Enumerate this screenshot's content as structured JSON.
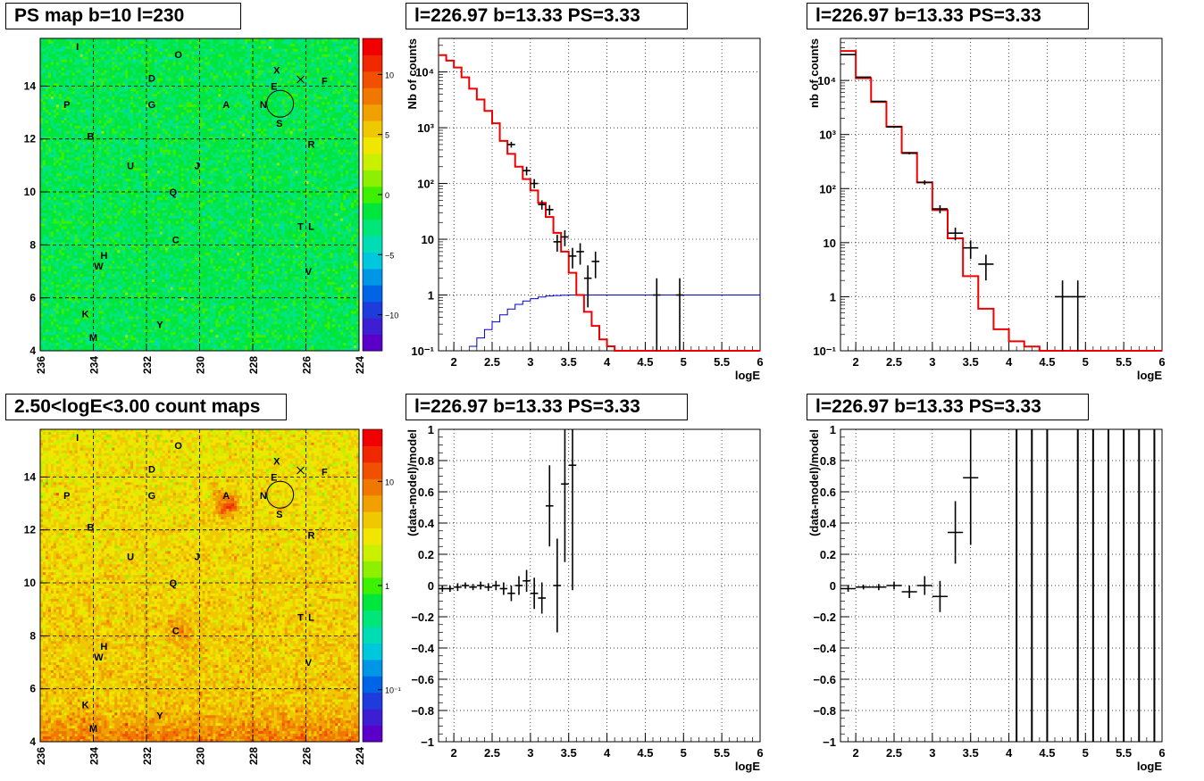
{
  "titles": {
    "ps_map": "PS map b=10 l=230",
    "count_map": "2.50<logE<3.00 count maps",
    "spec1": "l=226.97 b=13.33 PS=3.33",
    "spec2": "l=226.97 b=13.33 PS=3.33",
    "res1": "l=226.97 b=13.33 PS=3.33",
    "res2": "l=226.97 b=13.33 PS=3.33"
  },
  "maps": {
    "x_ticks": [
      "236",
      "234",
      "232",
      "230",
      "228",
      "226",
      "224"
    ],
    "y_ticks": [
      "4",
      "6",
      "8",
      "10",
      "12",
      "14"
    ],
    "x_range": [
      236,
      224
    ],
    "y_range": [
      4,
      15.8
    ],
    "sources": [
      {
        "label": "I",
        "l": 234.6,
        "b": 15.5
      },
      {
        "label": "O",
        "l": 230.8,
        "b": 15.2
      },
      {
        "label": "X",
        "l": 227.1,
        "b": 14.6
      },
      {
        "label": "D",
        "l": 231.8,
        "b": 14.3
      },
      {
        "label": "E",
        "l": 227.2,
        "b": 14.0
      },
      {
        "label": "F",
        "l": 225.3,
        "b": 14.2
      },
      {
        "label": "P",
        "l": 235.0,
        "b": 13.3
      },
      {
        "label": "G",
        "l": 231.8,
        "b": 13.3
      },
      {
        "label": "A",
        "l": 229.0,
        "b": 13.3
      },
      {
        "label": "N",
        "l": 227.6,
        "b": 13.3
      },
      {
        "label": "S",
        "l": 227.0,
        "b": 12.6
      },
      {
        "label": "B",
        "l": 234.1,
        "b": 12.1
      },
      {
        "label": "R",
        "l": 225.8,
        "b": 11.8
      },
      {
        "label": "U",
        "l": 232.6,
        "b": 11.0
      },
      {
        "label": "J",
        "l": 230.1,
        "b": 11.0
      },
      {
        "label": "Q",
        "l": 231.0,
        "b": 10.0
      },
      {
        "label": "T",
        "l": 226.2,
        "b": 8.7
      },
      {
        "label": "L",
        "l": 225.8,
        "b": 8.7
      },
      {
        "label": "C",
        "l": 230.9,
        "b": 8.2
      },
      {
        "label": "H",
        "l": 233.6,
        "b": 7.6
      },
      {
        "label": "W",
        "l": 233.8,
        "b": 7.2
      },
      {
        "label": "V",
        "l": 225.9,
        "b": 7.0
      },
      {
        "label": "K",
        "l": 234.3,
        "b": 5.4
      },
      {
        "label": "Y",
        "l": 231.5,
        "b": 5.0
      },
      {
        "label": "M",
        "l": 234.0,
        "b": 4.5
      }
    ],
    "target": {
      "l": 226.97,
      "b": 13.33
    },
    "ps_colorbar_ticks": [
      "10",
      "5",
      "0",
      "−5",
      "−10"
    ],
    "ps_colorbar_values": [
      10,
      5,
      0,
      -5,
      -10
    ],
    "ps_colorbar_range": [
      -13,
      13
    ],
    "count_colorbar_ticks": [
      "10",
      "1",
      "10⁻¹"
    ],
    "count_colorbar_values": [
      1,
      0,
      -1
    ],
    "count_colorbar_range": [
      -1.5,
      1.5
    ]
  },
  "chart_data": [
    {
      "type": "line",
      "name": "spec1",
      "xlabel": "logE",
      "ylabel": "Nb of counts",
      "xlim": [
        1.8,
        6.0
      ],
      "ylim": [
        0.1,
        40000
      ],
      "y_scale": "log",
      "x_ticks": [
        "2",
        "2.5",
        "3",
        "3.5",
        "4",
        "4.5",
        "5",
        "5.5",
        "6"
      ],
      "x_tick_values": [
        2,
        2.5,
        3,
        3.5,
        4,
        4.5,
        5,
        5.5,
        6
      ],
      "y_ticks": [
        "10⁻¹",
        "1",
        "10",
        "10²",
        "10³",
        "10⁴"
      ],
      "y_tick_values": [
        0.1,
        1,
        10,
        100,
        1000,
        10000
      ],
      "grid": true,
      "model_edges": [
        1.8,
        1.9,
        2.0,
        2.1,
        2.2,
        2.3,
        2.4,
        2.5,
        2.6,
        2.7,
        2.8,
        2.9,
        3.0,
        3.1,
        3.2,
        3.3,
        3.4,
        3.5,
        3.6,
        3.7,
        3.8,
        3.9,
        4.0,
        4.1,
        4.2,
        6.0
      ],
      "model_values": [
        20000,
        16000,
        12000,
        8000,
        5000,
        3200,
        2000,
        1200,
        580,
        340,
        200,
        120,
        75,
        45,
        25,
        13,
        6,
        2.5,
        1.0,
        0.5,
        0.28,
        0.16,
        0.12,
        0.1,
        0.09
      ],
      "blue_edges": [
        2.2,
        2.3,
        2.4,
        2.5,
        2.6,
        2.7,
        2.8,
        2.9,
        3.0,
        3.1,
        3.2,
        3.3,
        3.4,
        3.5,
        6.0
      ],
      "blue_values": [
        0.12,
        0.17,
        0.24,
        0.33,
        0.44,
        0.56,
        0.68,
        0.78,
        0.86,
        0.92,
        0.96,
        0.98,
        0.99,
        1.0,
        1.0
      ],
      "points": [
        {
          "x": 2.75,
          "y": 500,
          "dx": 0.05,
          "lo": 440,
          "hi": 560
        },
        {
          "x": 2.95,
          "y": 170,
          "dx": 0.05,
          "lo": 140,
          "hi": 200
        },
        {
          "x": 3.05,
          "y": 100,
          "dx": 0.05,
          "lo": 82,
          "hi": 120
        },
        {
          "x": 3.15,
          "y": 42,
          "dx": 0.05,
          "lo": 34,
          "hi": 50
        },
        {
          "x": 3.25,
          "y": 34,
          "dx": 0.05,
          "lo": 27,
          "hi": 41
        },
        {
          "x": 3.35,
          "y": 9,
          "dx": 0.05,
          "lo": 6,
          "hi": 12
        },
        {
          "x": 3.45,
          "y": 11,
          "dx": 0.05,
          "lo": 7.5,
          "hi": 14.5
        },
        {
          "x": 3.55,
          "y": 5,
          "dx": 0.05,
          "lo": 3,
          "hi": 7
        },
        {
          "x": 3.65,
          "y": 6,
          "dx": 0.05,
          "lo": 3.5,
          "hi": 8.5
        },
        {
          "x": 3.75,
          "y": 2,
          "dx": 0.05,
          "lo": 0.6,
          "hi": 3.4
        },
        {
          "x": 3.85,
          "y": 4,
          "dx": 0.05,
          "lo": 2,
          "hi": 6
        },
        {
          "x": 4.65,
          "y": 1,
          "dx": 0.05,
          "lo": 0.1,
          "hi": 2
        },
        {
          "x": 4.95,
          "y": 1,
          "dx": 0.05,
          "lo": 0.1,
          "hi": 2
        }
      ]
    },
    {
      "type": "line",
      "name": "spec2",
      "xlabel": "logE",
      "ylabel": "nb of counts",
      "xlim": [
        1.8,
        6.0
      ],
      "ylim": [
        0.1,
        60000
      ],
      "y_scale": "log",
      "x_ticks": [
        "2",
        "2.5",
        "3",
        "3.5",
        "4",
        "4.5",
        "5",
        "5.5",
        "6"
      ],
      "x_tick_values": [
        2,
        2.5,
        3,
        3.5,
        4,
        4.5,
        5,
        5.5,
        6
      ],
      "y_ticks": [
        "10⁻¹",
        "1",
        "10",
        "10²",
        "10³",
        "10⁴"
      ],
      "y_tick_values": [
        0.1,
        1,
        10,
        100,
        1000,
        10000
      ],
      "grid": true,
      "model_edges": [
        1.8,
        2.0,
        2.2,
        2.4,
        2.6,
        2.8,
        3.0,
        3.2,
        3.4,
        3.6,
        3.8,
        4.0,
        4.2,
        4.4,
        6.0
      ],
      "model_values": [
        35000,
        11000,
        4000,
        1400,
        460,
        130,
        40,
        12,
        2.4,
        0.6,
        0.25,
        0.15,
        0.12,
        0.1
      ],
      "points": [
        {
          "x": 1.9,
          "y": 30000,
          "dx": 0.1,
          "lo": 29500,
          "hi": 30500
        },
        {
          "x": 2.1,
          "y": 11500,
          "dx": 0.1,
          "lo": 11300,
          "hi": 11700
        },
        {
          "x": 2.3,
          "y": 4100,
          "dx": 0.1,
          "lo": 4000,
          "hi": 4200
        },
        {
          "x": 2.5,
          "y": 1380,
          "dx": 0.1,
          "lo": 1340,
          "hi": 1420
        },
        {
          "x": 2.7,
          "y": 450,
          "dx": 0.1,
          "lo": 430,
          "hi": 470
        },
        {
          "x": 2.9,
          "y": 130,
          "dx": 0.1,
          "lo": 118,
          "hi": 142
        },
        {
          "x": 3.1,
          "y": 42,
          "dx": 0.1,
          "lo": 35,
          "hi": 49
        },
        {
          "x": 3.3,
          "y": 15,
          "dx": 0.1,
          "lo": 11,
          "hi": 19
        },
        {
          "x": 3.5,
          "y": 8,
          "dx": 0.1,
          "lo": 5,
          "hi": 11
        },
        {
          "x": 3.7,
          "y": 4,
          "dx": 0.1,
          "lo": 2,
          "hi": 6
        },
        {
          "x": 4.7,
          "y": 1,
          "dx": 0.1,
          "lo": 0.1,
          "hi": 2
        },
        {
          "x": 4.9,
          "y": 1,
          "dx": 0.1,
          "lo": 0.1,
          "hi": 2
        }
      ]
    },
    {
      "type": "scatter",
      "name": "res1",
      "xlabel": "logE",
      "ylabel": "(data-model)/model",
      "xlim": [
        1.8,
        6.0
      ],
      "ylim": [
        -1,
        1
      ],
      "x_ticks": [
        "2",
        "2.5",
        "3",
        "3.5",
        "4",
        "4.5",
        "5",
        "5.5",
        "6"
      ],
      "x_tick_values": [
        2,
        2.5,
        3,
        3.5,
        4,
        4.5,
        5,
        5.5,
        6
      ],
      "y_ticks": [
        "1",
        "0.8",
        "0.6",
        "0.4",
        "0.2",
        "0",
        "−0.2",
        "−0.4",
        "−0.6",
        "−0.8",
        "−1"
      ],
      "y_tick_values": [
        1,
        0.8,
        0.6,
        0.4,
        0.2,
        0,
        -0.2,
        -0.4,
        -0.6,
        -0.8,
        -1
      ],
      "grid": true,
      "points": [
        {
          "x": 1.85,
          "y": -0.02,
          "dx": 0.05,
          "e": 0.02
        },
        {
          "x": 1.95,
          "y": -0.02,
          "dx": 0.05,
          "e": 0.02
        },
        {
          "x": 2.05,
          "y": -0.01,
          "dx": 0.05,
          "e": 0.025
        },
        {
          "x": 2.15,
          "y": 0.0,
          "dx": 0.05,
          "e": 0.02
        },
        {
          "x": 2.25,
          "y": -0.01,
          "dx": 0.05,
          "e": 0.02
        },
        {
          "x": 2.35,
          "y": 0.0,
          "dx": 0.05,
          "e": 0.025
        },
        {
          "x": 2.45,
          "y": -0.01,
          "dx": 0.05,
          "e": 0.025
        },
        {
          "x": 2.55,
          "y": 0.0,
          "dx": 0.05,
          "e": 0.03
        },
        {
          "x": 2.65,
          "y": -0.02,
          "dx": 0.05,
          "e": 0.04
        },
        {
          "x": 2.75,
          "y": -0.05,
          "dx": 0.05,
          "e": 0.05
        },
        {
          "x": 2.85,
          "y": 0.0,
          "dx": 0.05,
          "e": 0.06
        },
        {
          "x": 2.95,
          "y": 0.03,
          "dx": 0.05,
          "e": 0.07
        },
        {
          "x": 3.05,
          "y": -0.05,
          "dx": 0.05,
          "e": 0.1
        },
        {
          "x": 3.15,
          "y": -0.08,
          "dx": 0.05,
          "e": 0.1
        },
        {
          "x": 3.25,
          "y": 0.51,
          "dx": 0.05,
          "e": 0.26
        },
        {
          "x": 3.35,
          "y": 0.0,
          "dx": 0.05,
          "e": 0.3
        },
        {
          "x": 3.45,
          "y": 0.65,
          "dx": 0.05,
          "e": 0.5
        },
        {
          "x": 3.55,
          "y": 0.77,
          "dx": 0.05,
          "e": 0.8
        }
      ]
    },
    {
      "type": "scatter",
      "name": "res2",
      "xlabel": "logE",
      "ylabel": "(data-model)/model",
      "xlim": [
        1.8,
        6.0
      ],
      "ylim": [
        -1,
        1
      ],
      "x_ticks": [
        "2",
        "2.5",
        "3",
        "3.5",
        "4",
        "4.5",
        "5",
        "5.5",
        "6"
      ],
      "x_tick_values": [
        2,
        2.5,
        3,
        3.5,
        4,
        4.5,
        5,
        5.5,
        6
      ],
      "y_ticks": [
        "1",
        "0.8",
        "0.6",
        "0.4",
        "0.2",
        "0",
        "−0.2",
        "−0.4",
        "−0.6",
        "−0.8",
        "−1"
      ],
      "y_tick_values": [
        1,
        0.8,
        0.6,
        0.4,
        0.2,
        0,
        -0.2,
        -0.4,
        -0.6,
        -0.8,
        -1
      ],
      "grid": true,
      "points": [
        {
          "x": 1.9,
          "y": -0.02,
          "dx": 0.1,
          "e": 0.02
        },
        {
          "x": 2.1,
          "y": -0.01,
          "dx": 0.1,
          "e": 0.015
        },
        {
          "x": 2.3,
          "y": -0.01,
          "dx": 0.1,
          "e": 0.02
        },
        {
          "x": 2.5,
          "y": 0.0,
          "dx": 0.1,
          "e": 0.025
        },
        {
          "x": 2.7,
          "y": -0.04,
          "dx": 0.1,
          "e": 0.04
        },
        {
          "x": 2.9,
          "y": 0.0,
          "dx": 0.1,
          "e": 0.06
        },
        {
          "x": 3.1,
          "y": -0.07,
          "dx": 0.1,
          "e": 0.1
        },
        {
          "x": 3.3,
          "y": 0.34,
          "dx": 0.1,
          "e": 0.2
        },
        {
          "x": 3.5,
          "y": 0.69,
          "dx": 0.1,
          "e": 0.43
        }
      ],
      "full_bars_x": [
        4.1,
        4.3,
        4.5,
        4.9,
        5.1,
        5.3,
        5.5,
        5.7,
        5.9
      ]
    }
  ]
}
